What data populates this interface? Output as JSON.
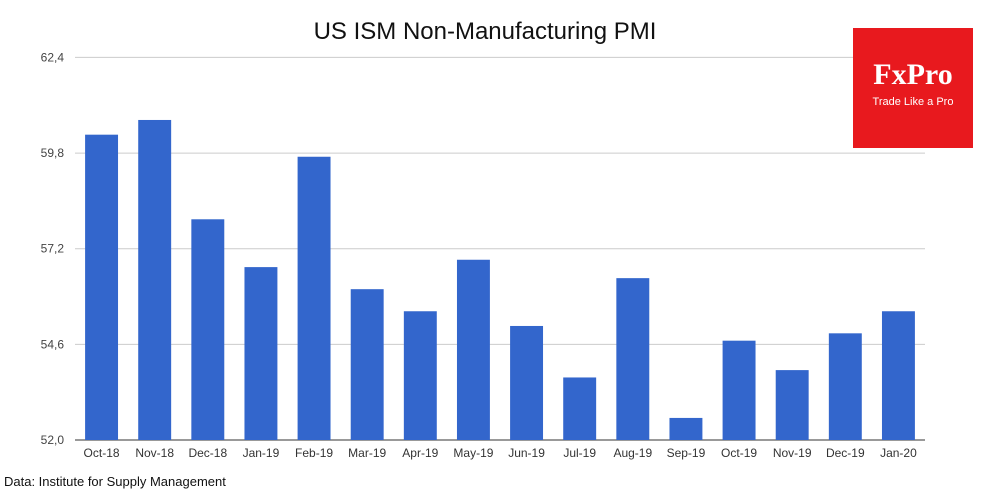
{
  "chart_data": {
    "type": "bar",
    "title": "US ISM Non-Manufacturing PMI",
    "categories": [
      "Oct-18",
      "Nov-18",
      "Dec-18",
      "Jan-19",
      "Feb-19",
      "Mar-19",
      "Apr-19",
      "May-19",
      "Jun-19",
      "Jul-19",
      "Aug-19",
      "Sep-19",
      "Oct-19",
      "Nov-19",
      "Dec-19",
      "Jan-20"
    ],
    "values": [
      60.3,
      60.7,
      58.0,
      56.7,
      59.7,
      56.1,
      55.5,
      56.9,
      55.1,
      53.7,
      56.4,
      52.6,
      54.7,
      53.9,
      54.9,
      55.5
    ],
    "ylim": [
      52.0,
      63.2
    ],
    "yticks": [
      "52,0",
      "54,6",
      "57,2",
      "59,8",
      "62,4"
    ],
    "ytick_values": [
      52.0,
      54.6,
      57.2,
      59.8,
      62.4
    ],
    "grid": true,
    "bar_color": "#3366cc",
    "xlabel": "",
    "ylabel": ""
  },
  "source": "Data: Institute for Supply Management",
  "logo": {
    "name": "FxPro",
    "tagline": "Trade Like a Pro",
    "color": "#e8191e"
  }
}
